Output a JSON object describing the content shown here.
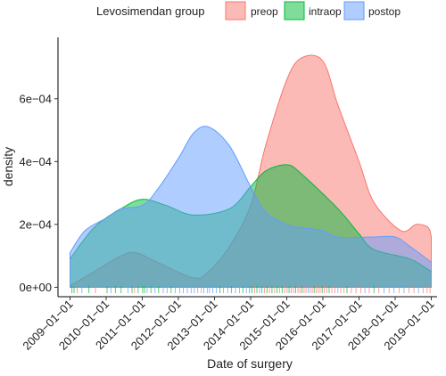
{
  "chart_data": {
    "type": "area",
    "title": "",
    "xlabel": "Date of surgery",
    "ylabel": "density",
    "legend_title": "Levosimendan group",
    "legend_position": "top",
    "xlim": [
      "2008-09-01",
      "2019-03-01"
    ],
    "ylim": [
      -3e-05,
      0.000795
    ],
    "x_ticks": [
      "2009-01-01",
      "2010-01-01",
      "2011-01-01",
      "2012-01-01",
      "2013-01-01",
      "2014-01-01",
      "2015-01-01",
      "2016-01-01",
      "2017-01-01",
      "2018-01-01",
      "2019-01-01"
    ],
    "y_ticks": [
      {
        "value": 0,
        "label": "0e+00"
      },
      {
        "value": 0.0002,
        "label": "2e−04"
      },
      {
        "value": 0.0004,
        "label": "4e−04"
      },
      {
        "value": 0.0006,
        "label": "6e−04"
      }
    ],
    "grid": false,
    "series": [
      {
        "name": "preop",
        "fill": "#F8766D",
        "points": [
          [
            "2009-01-01",
            5e-06
          ],
          [
            "2009-09-01",
            5e-05
          ],
          [
            "2010-06-01",
            0.0001
          ],
          [
            "2010-11-01",
            0.00011
          ],
          [
            "2011-06-01",
            8e-05
          ],
          [
            "2012-06-01",
            3e-05
          ],
          [
            "2012-11-01",
            5e-05
          ],
          [
            "2013-06-01",
            0.00013
          ],
          [
            "2014-01-01",
            0.00026
          ],
          [
            "2014-06-01",
            0.00045
          ],
          [
            "2015-01-01",
            0.00066
          ],
          [
            "2015-06-01",
            0.00073
          ],
          [
            "2016-01-01",
            0.00072
          ],
          [
            "2016-06-01",
            0.00058
          ],
          [
            "2017-01-01",
            0.0004
          ],
          [
            "2017-06-01",
            0.00027
          ],
          [
            "2018-03-01",
            0.00018
          ],
          [
            "2018-08-01",
            0.0002
          ],
          [
            "2018-12-01",
            0.00019
          ],
          [
            "2019-01-01",
            0.00016
          ]
        ]
      },
      {
        "name": "intraop",
        "fill": "#00BA38",
        "points": [
          [
            "2009-01-01",
            9e-05
          ],
          [
            "2009-09-01",
            0.00019
          ],
          [
            "2010-06-01",
            0.00025
          ],
          [
            "2011-01-01",
            0.00028
          ],
          [
            "2011-09-01",
            0.00026
          ],
          [
            "2012-06-01",
            0.00023
          ],
          [
            "2013-06-01",
            0.00025
          ],
          [
            "2014-01-01",
            0.00032
          ],
          [
            "2014-06-01",
            0.00037
          ],
          [
            "2015-01-01",
            0.00039
          ],
          [
            "2015-06-01",
            0.00036
          ],
          [
            "2016-06-01",
            0.00025
          ],
          [
            "2017-01-01",
            0.00017
          ],
          [
            "2017-06-01",
            0.00012
          ],
          [
            "2018-06-01",
            9e-05
          ],
          [
            "2019-01-01",
            5e-05
          ]
        ]
      },
      {
        "name": "postop",
        "fill": "#619CFF",
        "points": [
          [
            "2009-01-01",
            0.00011
          ],
          [
            "2009-06-01",
            0.00018
          ],
          [
            "2010-01-01",
            0.00022
          ],
          [
            "2010-06-01",
            0.00025
          ],
          [
            "2011-01-01",
            0.00026
          ],
          [
            "2011-06-01",
            0.00031
          ],
          [
            "2012-01-01",
            0.00041
          ],
          [
            "2012-06-01",
            0.00049
          ],
          [
            "2012-11-01",
            0.00051
          ],
          [
            "2013-06-01",
            0.00045
          ],
          [
            "2014-01-01",
            0.00032
          ],
          [
            "2014-06-01",
            0.00024
          ],
          [
            "2015-01-01",
            0.0002
          ],
          [
            "2015-06-01",
            0.00019
          ],
          [
            "2016-01-01",
            0.00018
          ],
          [
            "2016-06-01",
            0.00016
          ],
          [
            "2017-06-01",
            0.00016
          ],
          [
            "2018-01-01",
            0.00016
          ],
          [
            "2018-06-01",
            0.00013
          ],
          [
            "2019-01-01",
            8e-05
          ]
        ]
      }
    ],
    "rug": [
      [
        "2009-01-20",
        "intraop"
      ],
      [
        "2009-02-10",
        "intraop"
      ],
      [
        "2009-03-15",
        "preop"
      ],
      [
        "2009-05-01",
        "postop"
      ],
      [
        "2009-07-10",
        "intraop"
      ],
      [
        "2009-09-15",
        "preop"
      ],
      [
        "2010-01-10",
        "intraop"
      ],
      [
        "2010-02-20",
        "postop"
      ],
      [
        "2010-04-05",
        "intraop"
      ],
      [
        "2010-06-01",
        "intraop"
      ],
      [
        "2010-08-10",
        "postop"
      ],
      [
        "2010-09-20",
        "intraop"
      ],
      [
        "2010-10-15",
        "preop"
      ],
      [
        "2010-11-20",
        "intraop"
      ],
      [
        "2011-01-05",
        "intraop"
      ],
      [
        "2011-01-25",
        "intraop"
      ],
      [
        "2011-02-20",
        "postop"
      ],
      [
        "2011-03-30",
        "intraop"
      ],
      [
        "2011-05-10",
        "postop"
      ],
      [
        "2011-06-15",
        "intraop"
      ],
      [
        "2011-08-01",
        "postop"
      ],
      [
        "2011-09-10",
        "postop"
      ],
      [
        "2011-10-20",
        "intraop"
      ],
      [
        "2011-12-01",
        "postop"
      ],
      [
        "2012-01-15",
        "postop"
      ],
      [
        "2012-02-20",
        "postop"
      ],
      [
        "2012-04-01",
        "postop"
      ],
      [
        "2012-05-10",
        "postop"
      ],
      [
        "2012-06-10",
        "postop"
      ],
      [
        "2012-07-15",
        "postop"
      ],
      [
        "2012-08-20",
        "preop"
      ],
      [
        "2012-09-15",
        "postop"
      ],
      [
        "2012-10-20",
        "postop"
      ],
      [
        "2012-11-10",
        "postop"
      ],
      [
        "2012-12-15",
        "postop"
      ],
      [
        "2013-01-20",
        "postop"
      ],
      [
        "2013-02-25",
        "intraop"
      ],
      [
        "2013-04-01",
        "postop"
      ],
      [
        "2013-05-15",
        "postop"
      ],
      [
        "2013-06-20",
        "intraop"
      ],
      [
        "2013-08-01",
        "postop"
      ],
      [
        "2013-09-10",
        "preop"
      ],
      [
        "2013-10-15",
        "intraop"
      ],
      [
        "2013-11-20",
        "postop"
      ],
      [
        "2013-12-20",
        "intraop"
      ],
      [
        "2014-01-15",
        "intraop"
      ],
      [
        "2014-02-10",
        "preop"
      ],
      [
        "2014-03-05",
        "intraop"
      ],
      [
        "2014-04-01",
        "postop"
      ],
      [
        "2014-04-25",
        "intraop"
      ],
      [
        "2014-05-20",
        "preop"
      ],
      [
        "2014-06-15",
        "intraop"
      ],
      [
        "2014-07-10",
        "preop"
      ],
      [
        "2014-08-05",
        "intraop"
      ],
      [
        "2014-09-01",
        "preop"
      ],
      [
        "2014-09-25",
        "intraop"
      ],
      [
        "2014-10-20",
        "preop"
      ],
      [
        "2014-11-15",
        "intraop"
      ],
      [
        "2014-12-10",
        "preop"
      ],
      [
        "2015-01-05",
        "preop"
      ],
      [
        "2015-01-25",
        "intraop"
      ],
      [
        "2015-02-15",
        "preop"
      ],
      [
        "2015-03-10",
        "preop"
      ],
      [
        "2015-04-01",
        "intraop"
      ],
      [
        "2015-04-25",
        "preop"
      ],
      [
        "2015-05-15",
        "preop"
      ],
      [
        "2015-06-05",
        "intraop"
      ],
      [
        "2015-06-25",
        "preop"
      ],
      [
        "2015-07-15",
        "preop"
      ],
      [
        "2015-08-05",
        "postop"
      ],
      [
        "2015-08-25",
        "preop"
      ],
      [
        "2015-09-15",
        "preop"
      ],
      [
        "2015-10-05",
        "intraop"
      ],
      [
        "2015-10-25",
        "preop"
      ],
      [
        "2015-11-15",
        "preop"
      ],
      [
        "2015-12-05",
        "preop"
      ],
      [
        "2015-12-25",
        "intraop"
      ],
      [
        "2016-01-15",
        "preop"
      ],
      [
        "2016-02-10",
        "preop"
      ],
      [
        "2016-03-05",
        "intraop"
      ],
      [
        "2016-04-01",
        "preop"
      ],
      [
        "2016-05-01",
        "preop"
      ],
      [
        "2016-06-01",
        "postop"
      ],
      [
        "2016-07-01",
        "preop"
      ],
      [
        "2016-08-01",
        "preop"
      ],
      [
        "2016-09-01",
        "intraop"
      ],
      [
        "2016-10-15",
        "preop"
      ],
      [
        "2016-12-01",
        "preop"
      ],
      [
        "2017-01-20",
        "preop"
      ],
      [
        "2017-03-01",
        "postop"
      ],
      [
        "2017-04-15",
        "preop"
      ],
      [
        "2017-06-01",
        "intraop"
      ],
      [
        "2017-07-20",
        "preop"
      ],
      [
        "2017-09-10",
        "postop"
      ],
      [
        "2017-11-01",
        "preop"
      ],
      [
        "2017-12-20",
        "postop"
      ],
      [
        "2018-02-10",
        "preop"
      ],
      [
        "2018-04-01",
        "postop"
      ],
      [
        "2018-05-20",
        "preop"
      ],
      [
        "2018-07-10",
        "preop"
      ],
      [
        "2018-08-25",
        "postop"
      ],
      [
        "2018-10-10",
        "preop"
      ],
      [
        "2018-11-20",
        "preop"
      ],
      [
        "2018-12-20",
        "preop"
      ]
    ]
  }
}
